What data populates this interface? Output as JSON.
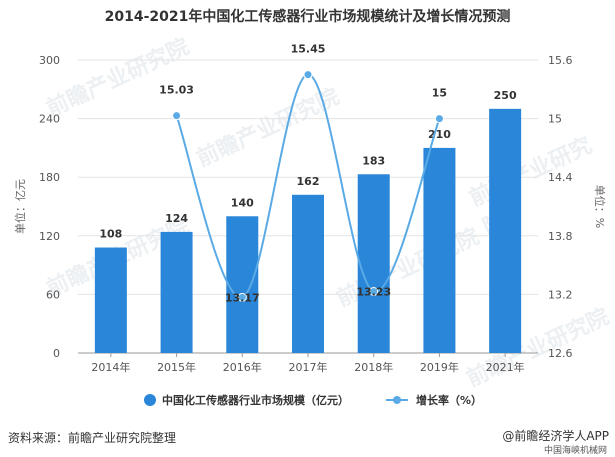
{
  "title": "2014-2021年中国化工传感器行业市场规模统计及增长情况预测",
  "footer": {
    "source": "资料来源：前瞻产业研究院整理",
    "brand": "@前瞻经济学人APP",
    "sub": "中国海峡机械网"
  },
  "watermark": "前瞻产业研究院",
  "colors": {
    "bar": "#2a86d8",
    "line": "#5aaae6",
    "grid": "#e3e3e3"
  },
  "chart_data": {
    "type": "bar",
    "categories": [
      "2014年",
      "2015年",
      "2016年",
      "2017年",
      "2018年",
      "2019年",
      "2021年"
    ],
    "series": [
      {
        "name": "中国化工传感器行业市场规模（亿元）",
        "type": "bar",
        "axis": "left",
        "values": [
          108,
          124,
          140,
          162,
          183,
          210,
          250
        ]
      },
      {
        "name": "增长率（%）",
        "type": "line",
        "axis": "right",
        "values": [
          null,
          15.03,
          13.17,
          15.45,
          13.23,
          15,
          null
        ]
      }
    ],
    "ylabel": "单位：亿元",
    "y2label": "单位：%",
    "ylim": [
      0,
      300
    ],
    "y2lim": [
      12.6,
      15.6
    ],
    "yticks": [
      "0",
      "60",
      "120",
      "180",
      "240",
      "300"
    ],
    "y2ticks": [
      "12.6",
      "13.2",
      "13.8",
      "14.4",
      "15",
      "15.6"
    ],
    "line_labels": [
      "",
      "15.03",
      "13.17",
      "15.45",
      "13.23",
      "15",
      ""
    ],
    "legend_position": "bottom",
    "grid": true
  }
}
